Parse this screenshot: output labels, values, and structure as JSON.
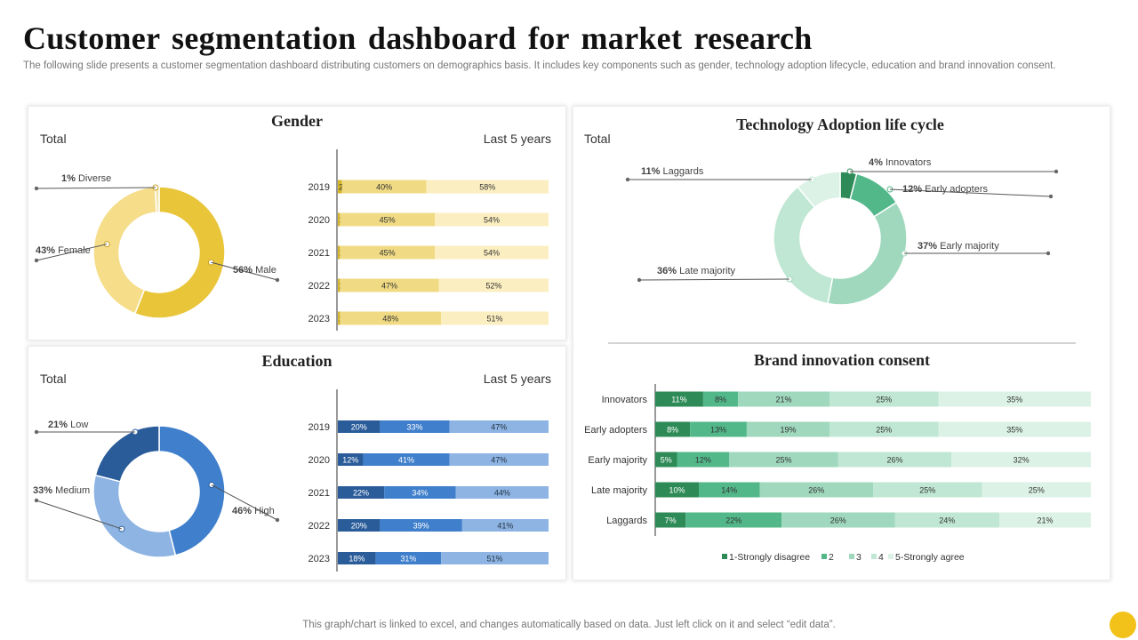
{
  "header": {
    "title": "Customer segmentation dashboard for market research",
    "subtitle": "The following slide presents a customer segmentation dashboard distributing customers on demographics basis. It includes key components such as gender, technology adoption lifecycle, education and brand innovation consent."
  },
  "footer": {
    "note": "This graph/chart is linked to excel,  and changes automatically based on data. Just left click on it and select “edit data”."
  },
  "colors": {
    "gender": [
      "#d6b62a",
      "#f0db84",
      "#fbeec0"
    ],
    "gender_donut": [
      "#e9c53a",
      "#f5dd8a",
      "#f3e4a8"
    ],
    "education": [
      "#2a5c9a",
      "#3f7fcc",
      "#8eb4e3"
    ],
    "education_donut": [
      "#3f7fcc",
      "#8eb4e3",
      "#2a5c9a"
    ],
    "tech": [
      "#2e8b57",
      "#52b88a",
      "#9fd8bd",
      "#c0e7d3",
      "#dcf2e7"
    ]
  },
  "chart_data": [
    {
      "id": "gender-donut",
      "type": "pie",
      "title": "Gender",
      "subtitle": "Total",
      "series": [
        {
          "name": "Male",
          "value": 56,
          "label": "56%"
        },
        {
          "name": "Female",
          "value": 43,
          "label": "43%"
        },
        {
          "name": "Diverse",
          "value": 1,
          "label": "1%"
        }
      ]
    },
    {
      "id": "gender-bars",
      "type": "bar",
      "stacked": true,
      "orientation": "horizontal",
      "subtitle": "Last 5 years",
      "categories": [
        "2019",
        "2020",
        "2021",
        "2022",
        "2023"
      ],
      "series": [
        {
          "name": "Diverse",
          "values": [
            2,
            1,
            1,
            1,
            1
          ]
        },
        {
          "name": "Female",
          "values": [
            40,
            45,
            45,
            47,
            48
          ]
        },
        {
          "name": "Male",
          "values": [
            58,
            54,
            54,
            52,
            51
          ]
        }
      ]
    },
    {
      "id": "education-donut",
      "type": "pie",
      "title": "Education",
      "subtitle": "Total",
      "series": [
        {
          "name": "High",
          "value": 46,
          "label": "46%"
        },
        {
          "name": "Medium",
          "value": 33,
          "label": "33%"
        },
        {
          "name": "Low",
          "value": 21,
          "label": "21%"
        }
      ]
    },
    {
      "id": "education-bars",
      "type": "bar",
      "stacked": true,
      "orientation": "horizontal",
      "subtitle": "Last 5 years",
      "categories": [
        "2019",
        "2020",
        "2021",
        "2022",
        "2023"
      ],
      "series": [
        {
          "name": "Low",
          "values": [
            20,
            12,
            22,
            20,
            18
          ]
        },
        {
          "name": "Medium",
          "values": [
            33,
            41,
            34,
            39,
            31
          ]
        },
        {
          "name": "High",
          "values": [
            47,
            47,
            44,
            41,
            51
          ]
        }
      ]
    },
    {
      "id": "tech-donut",
      "type": "pie",
      "title": "Technology Adoption life cycle",
      "subtitle": "Total",
      "series": [
        {
          "name": "Innovators",
          "value": 4,
          "label": "4%"
        },
        {
          "name": "Early adopters",
          "value": 12,
          "label": "12%"
        },
        {
          "name": "Early majority",
          "value": 37,
          "label": "37%"
        },
        {
          "name": "Late majority",
          "value": 36,
          "label": "36%"
        },
        {
          "name": "Laggards",
          "value": 11,
          "label": "11%"
        }
      ]
    },
    {
      "id": "brand-bars",
      "type": "bar",
      "stacked": true,
      "orientation": "horizontal",
      "title": "Brand innovation consent",
      "categories": [
        "Innovators",
        "Early adopters",
        "Early majority",
        "Late majority",
        "Laggards"
      ],
      "legend_position": "bottom",
      "series": [
        {
          "name": "1-Strongly disagree",
          "values": [
            11,
            8,
            5,
            10,
            7
          ]
        },
        {
          "name": "2",
          "values": [
            8,
            13,
            12,
            14,
            22
          ]
        },
        {
          "name": "3",
          "values": [
            21,
            19,
            25,
            26,
            26
          ]
        },
        {
          "name": "4",
          "values": [
            25,
            25,
            26,
            25,
            24
          ]
        },
        {
          "name": "5-Strongly agree",
          "values": [
            35,
            35,
            32,
            25,
            21
          ]
        }
      ]
    }
  ]
}
